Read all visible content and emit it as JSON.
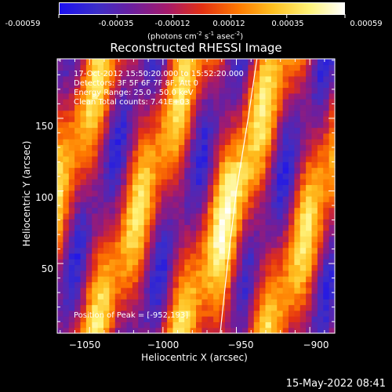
{
  "colorbar": {
    "colors": [
      "#1c10f0",
      "#3b2ec8",
      "#6a1fa0",
      "#a61a6a",
      "#e33013",
      "#ff7a00",
      "#ffc020",
      "#fff37a",
      "#ffffff"
    ],
    "tick_labels": [
      "-0.00059",
      "-0.00035",
      "-0.00012",
      "0.00012",
      "0.00035",
      "0.00059"
    ],
    "tick_values": [
      -0.00059,
      -0.00035,
      -0.00012,
      0.00012,
      0.00035,
      0.00059
    ],
    "range": [
      -0.00059,
      0.00059
    ],
    "units_prefix": "(photons cm",
    "units_exp1": "-2",
    "units_mid": " s",
    "units_exp2": "-1",
    "units_mid2": " asec",
    "units_exp3": "-2",
    "units_suffix": ")"
  },
  "chart_data": {
    "type": "heatmap",
    "title": "Reconstructed RHESSI Image",
    "xlabel": "Heliocentric X (arcsec)",
    "ylabel": "Heliocentric Y (arcsec)",
    "xlim": [
      -1072,
      -883
    ],
    "ylim": [
      2,
      191
    ],
    "x_ticks": [
      -1050,
      -1000,
      -950,
      -900
    ],
    "x_tick_labels": [
      "−1050",
      "−1000",
      "−950",
      "−900"
    ],
    "y_ticks": [
      50,
      100,
      150
    ],
    "y_tick_labels": [
      "50",
      "100",
      "150"
    ],
    "limb_curve": [
      [
        -961,
        2
      ],
      [
        -956,
        50
      ],
      [
        -950,
        100
      ],
      [
        -942,
        150
      ],
      [
        -936,
        191
      ]
    ],
    "peak": [
      -952,
      193
    ],
    "annotations": [
      "17-Oct-2012 15:50:20.000 to 15:52:20.000",
      "Detectors: 3F 5F 6F 7F 8F, Att 0",
      "Energy Range: 25.0 - 50.0 keV",
      "Clean     Total counts: 7.41E+03"
    ],
    "peak_label": "Position of Peak = [-952,193]"
  },
  "footer": {
    "timestamp": "15-May-2022 08:41"
  }
}
